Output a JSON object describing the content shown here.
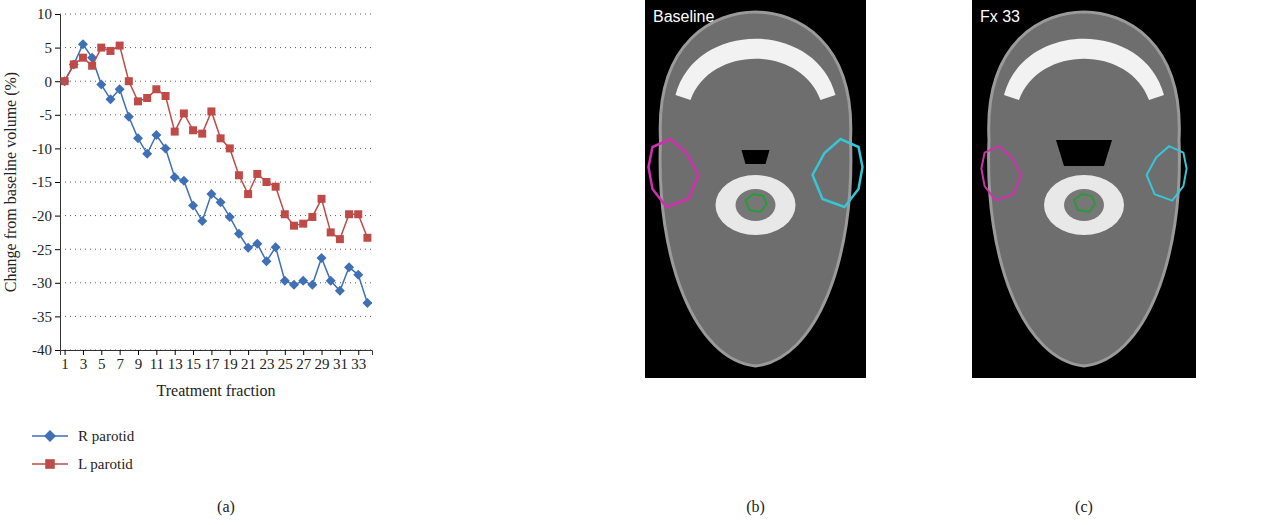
{
  "chart_data": {
    "type": "line",
    "panel_label": "(a)",
    "x_label": "Treatment fraction",
    "y_label": "Change from baseline volume (%)",
    "x": [
      1,
      2,
      3,
      4,
      5,
      6,
      7,
      8,
      9,
      10,
      11,
      12,
      13,
      14,
      15,
      16,
      17,
      18,
      19,
      20,
      21,
      22,
      23,
      24,
      25,
      26,
      27,
      28,
      29,
      30,
      31,
      32,
      33,
      34
    ],
    "xlim": [
      0.5,
      34.5
    ],
    "xticks": [
      1,
      3,
      5,
      7,
      9,
      11,
      13,
      15,
      17,
      19,
      21,
      23,
      25,
      27,
      29,
      31,
      33
    ],
    "ylim": [
      -40,
      10
    ],
    "yticks": [
      -40,
      -35,
      -30,
      -25,
      -20,
      -15,
      -10,
      -5,
      0,
      5,
      10
    ],
    "grid": true,
    "legend": "bottom",
    "series": [
      {
        "name": "R parotid",
        "color": "#3f6fb5",
        "marker": "diamond",
        "values": [
          0,
          2.5,
          5.5,
          3.5,
          -0.5,
          -2.7,
          -1.2,
          -5.3,
          -8.5,
          -10.8,
          -8,
          -10,
          -14.3,
          -14.8,
          -18.5,
          -20.8,
          -16.8,
          -18,
          -20.2,
          -22.7,
          -24.8,
          -24.2,
          -26.8,
          -24.7,
          -29.7,
          -30.3,
          -29.7,
          -30.3,
          -26.3,
          -29.7,
          -31.2,
          -27.7,
          -28.8,
          -33
        ]
      },
      {
        "name": "L parotid",
        "color": "#be4b48",
        "marker": "square",
        "values": [
          0,
          2.5,
          3.5,
          2.3,
          5,
          4.5,
          5.3,
          0,
          -3,
          -2.5,
          -1.2,
          -2.2,
          -7.5,
          -4.8,
          -7.3,
          -7.8,
          -4.5,
          -8.5,
          -10,
          -14,
          -16.8,
          -13.8,
          -15,
          -15.7,
          -19.8,
          -21.5,
          -21.2,
          -20.2,
          -17.5,
          -22.5,
          -23.5,
          -19.8,
          -19.8,
          -23.3
        ]
      }
    ]
  },
  "images": [
    {
      "panel_label": "(b)",
      "title": "Baseline"
    },
    {
      "panel_label": "(c)",
      "title": "Fx 33"
    }
  ]
}
